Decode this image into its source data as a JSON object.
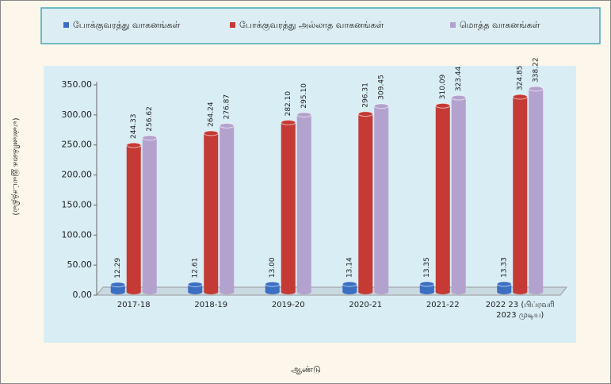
{
  "chart_data": {
    "type": "bar3d",
    "ylabel": "(எண்ணிக்கை இலட்சத்தில்)",
    "xlabel": "ஆண்டு",
    "categories": [
      "2017-18",
      "2018-19",
      "2019-20",
      "2020-21",
      "2021-22",
      "2022 23 (பிப்ரவரி 2023 முடிய)"
    ],
    "series": [
      {
        "name": "போக்குவரத்து வாகனங்கள்",
        "color": "#3b6fc2",
        "values": [
          12.29,
          12.61,
          13.0,
          13.14,
          13.35,
          13.33
        ],
        "value_labels": [
          "12.29",
          "12.61",
          "13.00",
          "13.14",
          "13.35",
          "13.33"
        ]
      },
      {
        "name": "போக்குவரத்து அல்லாத வாகனங்கள்",
        "color": "#c53a34",
        "values": [
          244.33,
          264.24,
          282.1,
          296.31,
          310.09,
          324.85
        ],
        "value_labels": [
          "244.33",
          "264.24",
          "282.10",
          "296.31",
          "310.09",
          "324.85"
        ]
      },
      {
        "name": "மொத்த வாகனங்கள்",
        "color": "#b4a2ce",
        "values": [
          256.62,
          276.87,
          295.1,
          309.45,
          323.44,
          338.22
        ],
        "value_labels": [
          "256.62",
          "276.87",
          "295.10",
          "309.45",
          "323.44",
          "338.22"
        ]
      }
    ],
    "ylim": [
      0,
      350
    ],
    "yticks": [
      {
        "value": 0,
        "label": "0.00"
      },
      {
        "value": 50,
        "label": "50.00"
      },
      {
        "value": 100,
        "label": "100.00"
      },
      {
        "value": 150,
        "label": "150.00"
      },
      {
        "value": 200,
        "label": "200.00"
      },
      {
        "value": 250,
        "label": "250.00"
      },
      {
        "value": 300,
        "label": "300.00"
      },
      {
        "value": 350,
        "label": "350.00"
      }
    ],
    "legend": "top"
  }
}
